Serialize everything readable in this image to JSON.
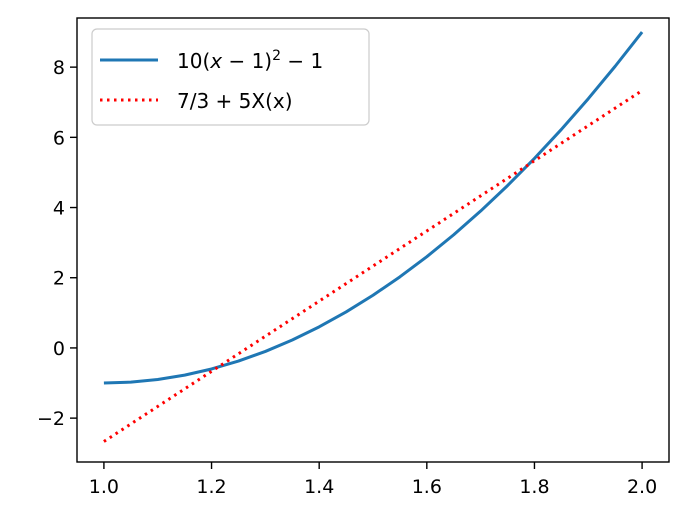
{
  "chart_data": {
    "type": "line",
    "xlim": [
      0.95,
      2.05
    ],
    "ylim": [
      -3.25,
      9.4
    ],
    "x_ticks": [
      1.0,
      1.2,
      1.4,
      1.6,
      1.8,
      2.0
    ],
    "x_tick_labels": [
      "1.0",
      "1.2",
      "1.4",
      "1.6",
      "1.8",
      "2.0"
    ],
    "y_ticks": [
      -2,
      0,
      2,
      4,
      6,
      8
    ],
    "y_tick_labels": [
      "−2",
      "0",
      "2",
      "4",
      "6",
      "8"
    ],
    "grid": false,
    "legend_position": "top-left",
    "series": [
      {
        "name_parts": [
          "10(",
          "x",
          " − 1)",
          "2",
          " − 1"
        ],
        "style": "solid",
        "color": "#1f77b4",
        "x": [
          1.0,
          1.05,
          1.1,
          1.15,
          1.2,
          1.25,
          1.3,
          1.35,
          1.4,
          1.45,
          1.5,
          1.55,
          1.6,
          1.65,
          1.7,
          1.75,
          1.8,
          1.85,
          1.9,
          1.95,
          2.0
        ],
        "y": [
          -1.0,
          -0.975,
          -0.9,
          -0.775,
          -0.6,
          -0.375,
          -0.1,
          0.225,
          0.6,
          1.025,
          1.5,
          2.025,
          2.6,
          3.225,
          3.9,
          4.625,
          5.4,
          6.225,
          7.1,
          8.025,
          9.0
        ]
      },
      {
        "name": "7/3 + 5X(x)",
        "style": "dotted",
        "color": "#ff0000",
        "x": [
          1.0,
          2.0
        ],
        "y": [
          -2.667,
          7.333
        ]
      }
    ]
  }
}
